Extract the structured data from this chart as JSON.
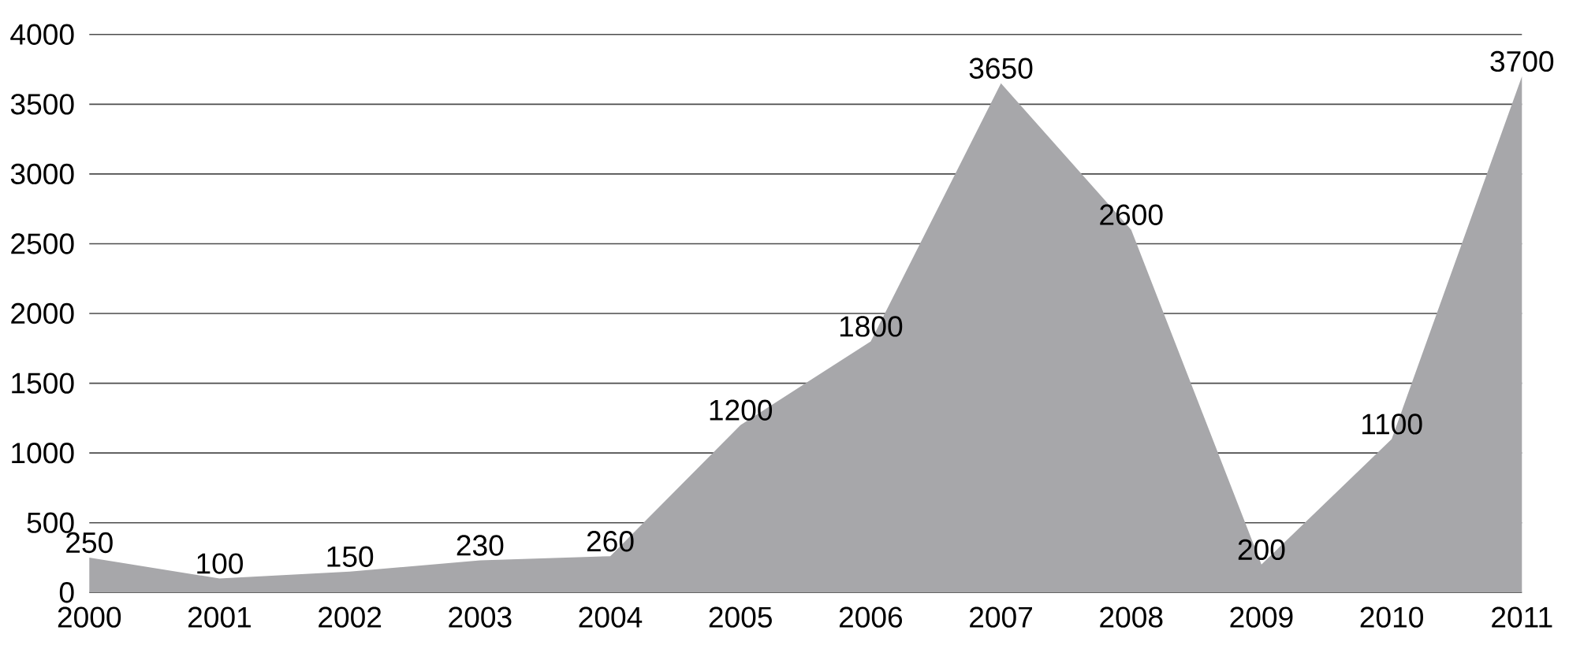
{
  "chart_data": {
    "type": "area",
    "categories": [
      "2000",
      "2001",
      "2002",
      "2003",
      "2004",
      "2005",
      "2006",
      "2007",
      "2008",
      "2009",
      "2010",
      "2011"
    ],
    "values": [
      250,
      100,
      150,
      230,
      260,
      1200,
      1800,
      3650,
      2600,
      200,
      1100,
      3700
    ],
    "color": "#a7a7aa",
    "ylim": [
      0,
      4000
    ],
    "yticks": [
      0,
      500,
      1000,
      1500,
      2000,
      2500,
      3000,
      3500,
      4000
    ],
    "grid": "y",
    "data_labels": true
  }
}
